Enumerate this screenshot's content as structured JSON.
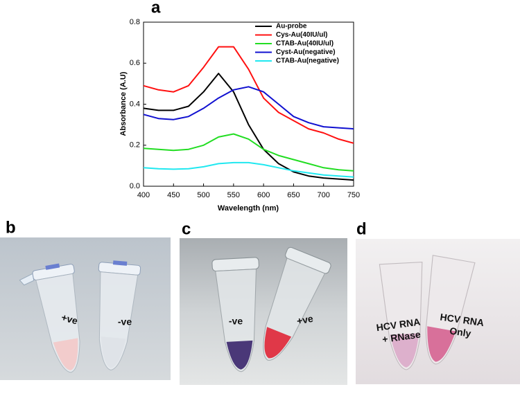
{
  "chart_data": {
    "type": "line",
    "title": "a",
    "x_label": "Wavelength (nm)",
    "y_label": "Absorbance (A.U)",
    "x": [
      400,
      425,
      450,
      475,
      500,
      525,
      550,
      575,
      600,
      625,
      650,
      675,
      700,
      725,
      750
    ],
    "series": [
      {
        "name": "Au-probe",
        "color": "#000000",
        "values": [
          0.38,
          0.37,
          0.37,
          0.39,
          0.46,
          0.55,
          0.46,
          0.3,
          0.18,
          0.11,
          0.07,
          0.05,
          0.04,
          0.035,
          0.03
        ]
      },
      {
        "name": "Cys-Au(40IU/ul)",
        "color": "#ff1010",
        "values": [
          0.49,
          0.47,
          0.46,
          0.49,
          0.58,
          0.68,
          0.68,
          0.57,
          0.43,
          0.36,
          0.32,
          0.28,
          0.26,
          0.23,
          0.21
        ]
      },
      {
        "name": "CTAB-Au(40IU/ul)",
        "color": "#22dd22",
        "values": [
          0.185,
          0.18,
          0.175,
          0.18,
          0.2,
          0.24,
          0.255,
          0.23,
          0.18,
          0.15,
          0.13,
          0.11,
          0.09,
          0.08,
          0.075
        ]
      },
      {
        "name": "Cyst-Au(negative)",
        "color": "#1010d0",
        "values": [
          0.35,
          0.33,
          0.325,
          0.34,
          0.38,
          0.43,
          0.47,
          0.485,
          0.46,
          0.4,
          0.34,
          0.31,
          0.29,
          0.285,
          0.28
        ]
      },
      {
        "name": "CTAB-Au(negative)",
        "color": "#20e8f0",
        "values": [
          0.09,
          0.085,
          0.083,
          0.085,
          0.095,
          0.11,
          0.115,
          0.115,
          0.105,
          0.09,
          0.075,
          0.065,
          0.055,
          0.05,
          0.045
        ]
      }
    ],
    "xlim": [
      400,
      750
    ],
    "ylim": [
      0,
      0.8
    ],
    "xticks": [
      400,
      450,
      500,
      550,
      600,
      650,
      700,
      750
    ],
    "yticks": [
      {
        "value": 0,
        "label": "0.0"
      },
      0.2,
      0.4,
      0.6,
      0.8
    ],
    "legend": "upper right"
  },
  "photos": [
    {
      "label": "b",
      "tubes": [
        [
          "+ve"
        ],
        [
          "-ve"
        ]
      ]
    },
    {
      "label": "c",
      "tubes": [
        [
          "-ve"
        ],
        [
          "+ve"
        ]
      ]
    },
    {
      "label": "d",
      "tubes": [
        [
          "HCV RNA",
          "+ RNase"
        ],
        [
          "HCV RNA",
          "Only"
        ]
      ]
    }
  ]
}
